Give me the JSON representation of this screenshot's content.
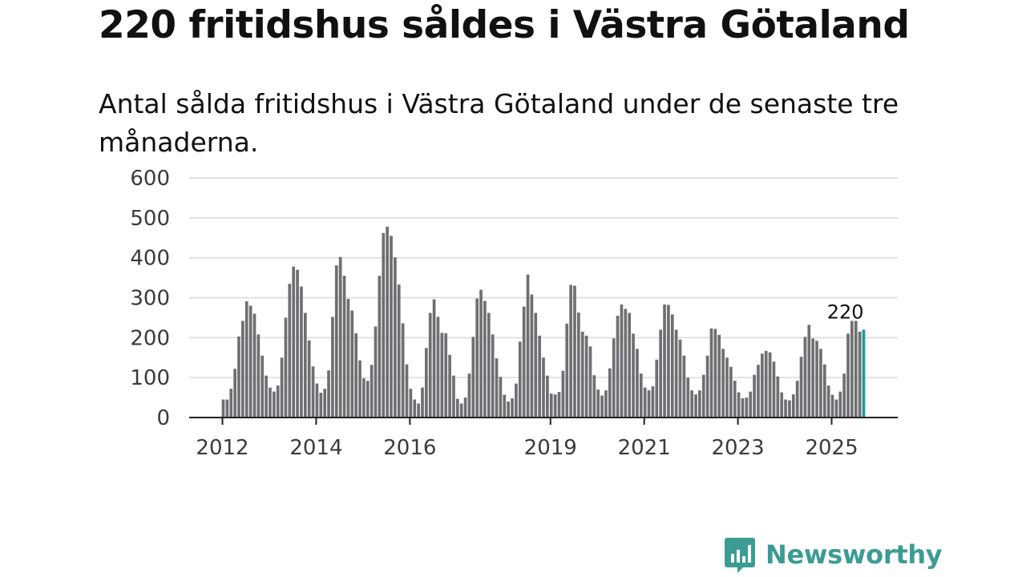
{
  "title": "220 fritidshus såldes i Västra Götaland",
  "subtitle": "Antal sålda fritidshus i Västra Götaland under de senaste tre månaderna.",
  "brand": {
    "name": "Newsworthy",
    "icon": "bar-chart-logo-icon",
    "color": "#3b9c94"
  },
  "chart_data": {
    "type": "bar",
    "x_ticks": [
      "2012",
      "2014",
      "2016",
      "2019",
      "2021",
      "2023",
      "2025"
    ],
    "ylim": [
      0,
      600
    ],
    "y_ticks": [
      0,
      100,
      200,
      300,
      400,
      500,
      600
    ],
    "grid": true,
    "start": "2012-01",
    "values": [
      45,
      45,
      72,
      122,
      203,
      242,
      291,
      280,
      260,
      208,
      155,
      105,
      75,
      65,
      80,
      150,
      250,
      335,
      378,
      370,
      328,
      262,
      193,
      128,
      85,
      62,
      72,
      118,
      252,
      381,
      402,
      355,
      297,
      268,
      211,
      143,
      98,
      92,
      132,
      228,
      355,
      462,
      478,
      455,
      401,
      333,
      236,
      133,
      72,
      45,
      35,
      75,
      174,
      262,
      296,
      252,
      212,
      211,
      157,
      105,
      47,
      35,
      50,
      110,
      202,
      298,
      320,
      292,
      262,
      208,
      148,
      102,
      57,
      40,
      48,
      85,
      190,
      278,
      358,
      308,
      262,
      205,
      150,
      105,
      60,
      58,
      64,
      117,
      235,
      332,
      330,
      263,
      215,
      205,
      178,
      106,
      70,
      55,
      68,
      123,
      198,
      255,
      283,
      272,
      262,
      210,
      172,
      110,
      75,
      68,
      78,
      145,
      220,
      283,
      282,
      258,
      220,
      195,
      155,
      100,
      68,
      58,
      68,
      107,
      155,
      223,
      222,
      207,
      172,
      150,
      127,
      92,
      63,
      48,
      50,
      65,
      107,
      132,
      160,
      167,
      163,
      140,
      103,
      63,
      45,
      43,
      58,
      92,
      152,
      202,
      232,
      198,
      192,
      172,
      133,
      80,
      57,
      45,
      65,
      110,
      210,
      242,
      242,
      215,
      220
    ],
    "highlight_color": "#1a9c96",
    "bar_color": "#6f6e72",
    "annotation": "220"
  }
}
